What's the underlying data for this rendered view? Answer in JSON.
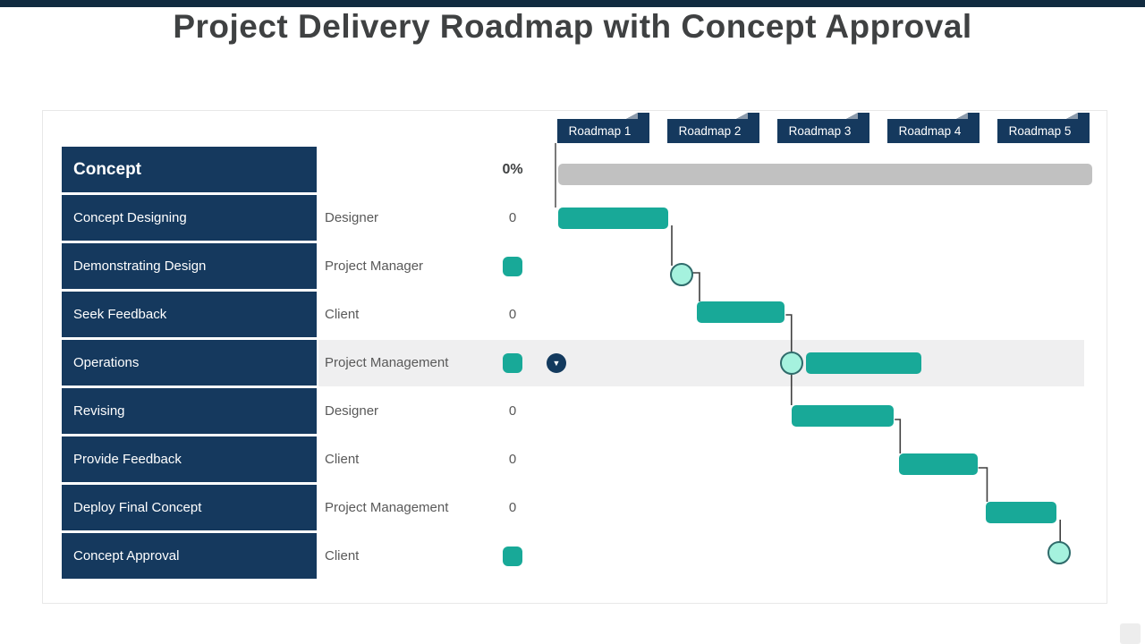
{
  "page": {
    "title": "Project Delivery Roadmap with Concept Approval"
  },
  "colors": {
    "topbar": "#112B40",
    "navy": "#15395E",
    "tab_fold": "#8C9BAC",
    "teal": "#18A998",
    "summary_bar": "#C1C1C1",
    "milestone_fill": "#A5F2DE",
    "milestone_border": "#2F6B6B",
    "row_highlight": "#EFEFF0",
    "connector": "#3F3F3F",
    "role_text": "#595959",
    "title_text": "#3F4142"
  },
  "chart_data": {
    "type": "gantt",
    "title": "Project Delivery Roadmap with Concept Approval",
    "columns": [
      "Roadmap 1",
      "Roadmap 2",
      "Roadmap 3",
      "Roadmap 4",
      "Roadmap 5"
    ],
    "tasks": [
      {
        "name": "Concept",
        "resource": "",
        "value": "0%",
        "kind": "summary",
        "start": 0,
        "end": 4.85
      },
      {
        "name": "Concept Designing",
        "resource": "Designer",
        "value": "0",
        "kind": "bar",
        "start": 0,
        "end": 1.0
      },
      {
        "name": "Demonstrating Design",
        "resource": "Project Manager",
        "value": "",
        "kind": "milestone",
        "at": 1.12
      },
      {
        "name": "Seek Feedback",
        "resource": "Client",
        "value": "0",
        "kind": "bar",
        "start": 1.26,
        "end": 2.06
      },
      {
        "name": "Operations",
        "resource": "Project Management",
        "value": "",
        "kind": "milestone_and_bar",
        "at": 2.12,
        "start": 2.25,
        "end": 3.3,
        "highlighted": true,
        "has_dropdown": true
      },
      {
        "name": "Revising",
        "resource": "Designer",
        "value": "0",
        "kind": "bar",
        "start": 2.12,
        "end": 3.05
      },
      {
        "name": "Provide Feedback",
        "resource": "Client",
        "value": "0",
        "kind": "bar",
        "start": 3.1,
        "end": 3.81
      },
      {
        "name": "Deploy Final Concept",
        "resource": "Project Management",
        "value": "0",
        "kind": "bar",
        "start": 3.89,
        "end": 4.53
      },
      {
        "name": "Concept Approval",
        "resource": "Client",
        "value": "",
        "kind": "milestone",
        "at": 4.55
      }
    ],
    "links": [
      [
        1,
        2
      ],
      [
        2,
        3
      ],
      [
        3,
        4
      ],
      [
        4,
        5
      ],
      [
        5,
        6
      ],
      [
        6,
        7
      ],
      [
        7,
        8
      ]
    ]
  }
}
